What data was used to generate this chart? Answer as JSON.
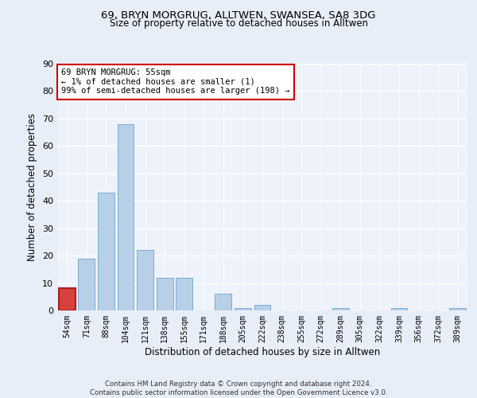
{
  "title1": "69, BRYN MORGRUG, ALLTWEN, SWANSEA, SA8 3DG",
  "title2": "Size of property relative to detached houses in Alltwen",
  "xlabel": "Distribution of detached houses by size in Alltwen",
  "ylabel": "Number of detached properties",
  "bins": [
    "54sqm",
    "71sqm",
    "88sqm",
    "104sqm",
    "121sqm",
    "138sqm",
    "155sqm",
    "171sqm",
    "188sqm",
    "205sqm",
    "222sqm",
    "238sqm",
    "255sqm",
    "272sqm",
    "289sqm",
    "305sqm",
    "322sqm",
    "339sqm",
    "356sqm",
    "372sqm",
    "389sqm"
  ],
  "values": [
    8,
    19,
    43,
    68,
    22,
    12,
    12,
    0,
    6,
    1,
    2,
    0,
    0,
    0,
    1,
    0,
    0,
    1,
    0,
    0,
    1
  ],
  "bar_color": "#b8cfe8",
  "bar_edge_color": "#7aadd4",
  "highlight_bar_index": 0,
  "highlight_fill": "#d94040",
  "highlight_edge": "#aa2020",
  "annotation_text": "69 BRYN MORGRUG: 55sqm\n← 1% of detached houses are smaller (1)\n99% of semi-detached houses are larger (198) →",
  "annotation_box_color": "#ffffff",
  "annotation_box_edge": "#cc0000",
  "ylim": [
    0,
    90
  ],
  "yticks": [
    0,
    10,
    20,
    30,
    40,
    50,
    60,
    70,
    80,
    90
  ],
  "bg_color": "#e8eef8",
  "plot_bg_color": "#eef2fa",
  "footer": "Contains HM Land Registry data © Crown copyright and database right 2024.\nContains public sector information licensed under the Open Government Licence v3.0."
}
